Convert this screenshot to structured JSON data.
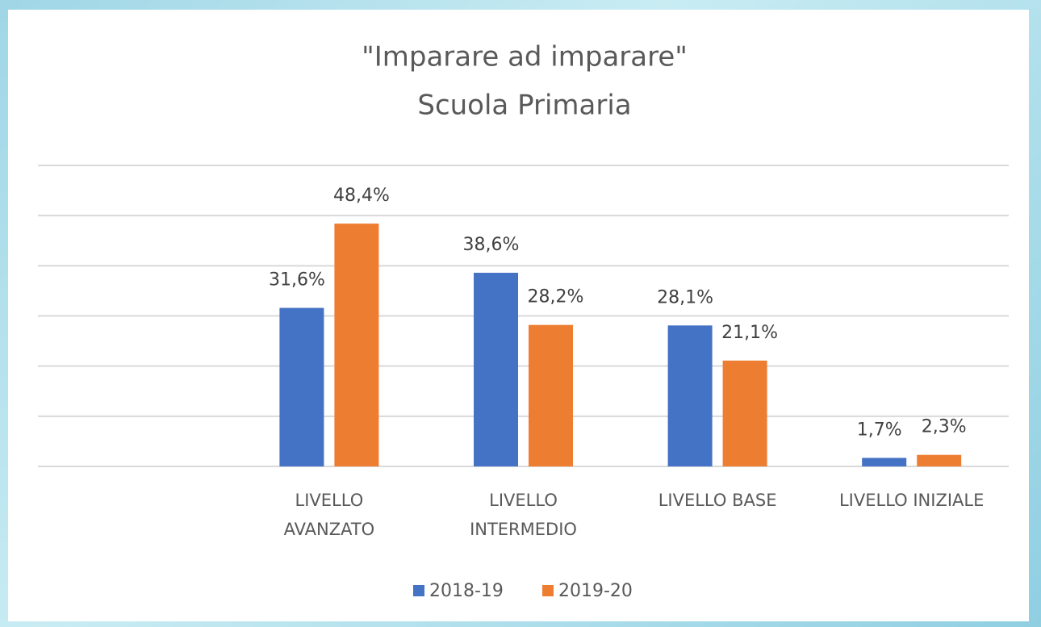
{
  "chart_data": {
    "type": "bar",
    "title": "\"Imparare ad imparare\"",
    "subtitle": "Scuola Primaria",
    "categories": [
      null,
      "LIVELLO\nAVANZATO",
      "LIVELLO\nINTERMEDIO",
      "LIVELLO  BASE",
      "LIVELLO INIZIALE"
    ],
    "series": [
      {
        "name": "2018-19",
        "color": "#4472c4",
        "values": [
          null,
          31.6,
          38.6,
          28.1,
          1.7
        ],
        "value_labels": [
          null,
          "31,6%",
          "38,6%",
          "28,1%",
          "1,7%"
        ]
      },
      {
        "name": "2019-20",
        "color": "#ed7d31",
        "values": [
          null,
          48.4,
          28.2,
          21.1,
          2.3
        ],
        "value_labels": [
          null,
          "48,4%",
          "28,2%",
          "21,1%",
          "2,3%"
        ]
      }
    ],
    "ylim": [
      0,
      60
    ],
    "yticks": [
      0,
      10,
      20,
      30,
      40,
      50,
      60
    ],
    "grid": true,
    "legend": "bottom"
  }
}
